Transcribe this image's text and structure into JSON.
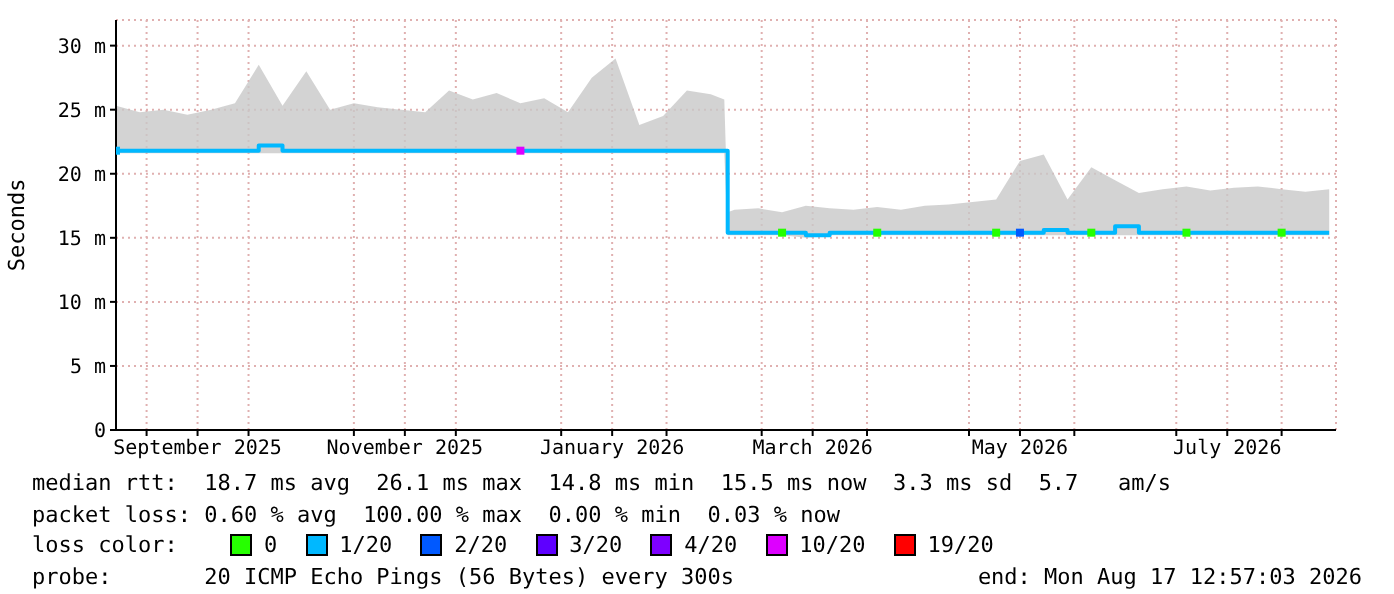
{
  "chart_data": {
    "type": "line",
    "ylabel": "Seconds",
    "x": [
      "2025-08-23",
      "2025-08-30",
      "2025-09-06",
      "2025-09-13",
      "2025-09-20",
      "2025-09-27",
      "2025-10-04",
      "2025-10-11",
      "2025-10-18",
      "2025-10-25",
      "2025-11-01",
      "2025-11-08",
      "2025-11-15",
      "2025-11-22",
      "2025-11-29",
      "2025-12-06",
      "2025-12-13",
      "2025-12-20",
      "2025-12-27",
      "2026-01-03",
      "2026-01-10",
      "2026-01-17",
      "2026-01-24",
      "2026-01-31",
      "2026-02-07",
      "2026-02-14",
      "2026-02-18",
      "2026-02-19",
      "2026-02-21",
      "2026-02-28",
      "2026-03-07",
      "2026-03-14",
      "2026-03-21",
      "2026-03-28",
      "2026-04-04",
      "2026-04-11",
      "2026-04-18",
      "2026-04-25",
      "2026-05-02",
      "2026-05-09",
      "2026-05-16",
      "2026-05-23",
      "2026-05-30",
      "2026-06-06",
      "2026-06-13",
      "2026-06-20",
      "2026-06-27",
      "2026-07-04",
      "2026-07-11",
      "2026-07-18",
      "2026-07-25",
      "2026-08-01",
      "2026-08-08",
      "2026-08-15"
    ],
    "series": [
      {
        "color": "#00b8ff",
        "values": [
          21.8,
          21.8,
          21.8,
          21.8,
          21.8,
          21.8,
          22.2,
          21.8,
          21.8,
          21.8,
          21.8,
          21.8,
          21.8,
          21.8,
          21.8,
          21.8,
          21.8,
          21.8,
          21.8,
          21.8,
          21.8,
          21.8,
          21.8,
          21.8,
          21.8,
          21.8,
          21.8,
          15.4,
          15.4,
          15.4,
          15.4,
          15.2,
          15.4,
          15.4,
          15.4,
          15.4,
          15.4,
          15.4,
          15.4,
          15.4,
          15.4,
          15.6,
          15.4,
          15.4,
          15.9,
          15.4,
          15.4,
          15.4,
          15.4,
          15.4,
          15.4,
          15.4,
          15.4,
          15.4
        ],
        "lower": [
          21.6,
          21.6,
          21.6,
          21.6,
          21.6,
          21.6,
          21.6,
          21.6,
          21.6,
          21.6,
          21.6,
          21.6,
          21.6,
          21.6,
          21.6,
          21.6,
          21.6,
          21.6,
          21.6,
          21.6,
          21.6,
          21.6,
          21.6,
          21.6,
          21.6,
          21.6,
          21.6,
          15.2,
          15.2,
          15.2,
          15.2,
          15.0,
          15.2,
          15.2,
          15.2,
          15.2,
          15.2,
          15.2,
          15.2,
          15.2,
          15.2,
          15.2,
          15.2,
          15.2,
          15.2,
          15.2,
          15.2,
          15.2,
          15.2,
          15.2,
          15.2,
          15.2,
          15.2,
          15.2
        ],
        "upper": [
          25.3,
          24.8,
          25.0,
          24.6,
          25.0,
          25.5,
          28.5,
          25.3,
          28.0,
          25.0,
          25.5,
          25.2,
          25.0,
          24.8,
          26.5,
          25.8,
          26.3,
          25.5,
          25.9,
          24.8,
          27.5,
          29.0,
          23.8,
          24.5,
          26.5,
          26.2,
          25.8,
          17.0,
          17.2,
          17.3,
          17.0,
          17.5,
          17.3,
          17.2,
          17.4,
          17.2,
          17.5,
          17.6,
          17.8,
          18.0,
          21.0,
          21.5,
          18.0,
          20.5,
          19.5,
          18.5,
          18.8,
          19.0,
          18.7,
          18.9,
          19.0,
          18.8,
          18.6,
          18.8
        ]
      },
      {
        "type": "scatter",
        "name": "0",
        "color": "#26ff00",
        "values": [
          null,
          null,
          null,
          null,
          null,
          null,
          null,
          null,
          null,
          null,
          null,
          null,
          null,
          null,
          null,
          null,
          null,
          null,
          null,
          null,
          null,
          null,
          null,
          null,
          null,
          null,
          null,
          null,
          null,
          null,
          15.4,
          null,
          null,
          null,
          15.4,
          null,
          null,
          null,
          null,
          15.4,
          null,
          null,
          null,
          15.4,
          null,
          null,
          null,
          15.4,
          null,
          null,
          null,
          15.4,
          null,
          null
        ]
      },
      {
        "type": "scatter",
        "name": "1/20",
        "color": "#00b8ff",
        "values": [
          21.8,
          null,
          null,
          null,
          null,
          null,
          null,
          null,
          null,
          null,
          null,
          null,
          null,
          null,
          null,
          null,
          null,
          null,
          null,
          null,
          null,
          null,
          null,
          null,
          null,
          null,
          null,
          null,
          null,
          null,
          null,
          null,
          null,
          null,
          null,
          null,
          null,
          null,
          null,
          null,
          null,
          null,
          null,
          null,
          null,
          null,
          null,
          null,
          null,
          null,
          null,
          null,
          null,
          null
        ]
      },
      {
        "type": "scatter",
        "name": "2/20",
        "color": "#0059ff",
        "values": [
          null,
          null,
          null,
          null,
          null,
          null,
          null,
          null,
          null,
          null,
          null,
          null,
          null,
          null,
          null,
          null,
          null,
          null,
          null,
          null,
          null,
          null,
          null,
          null,
          null,
          null,
          null,
          null,
          null,
          null,
          null,
          null,
          null,
          null,
          null,
          null,
          null,
          null,
          null,
          null,
          15.4,
          null,
          null,
          null,
          null,
          null,
          null,
          null,
          null,
          null,
          null,
          null,
          null,
          null
        ]
      },
      {
        "type": "scatter",
        "name": "3/20",
        "color": "#5e00ff",
        "values": [
          null,
          null,
          null,
          null,
          null,
          null,
          null,
          null,
          null,
          null,
          null,
          null,
          null,
          null,
          null,
          null,
          null,
          null,
          null,
          null,
          null,
          null,
          null,
          null,
          null,
          null,
          null,
          null,
          null,
          null,
          null,
          null,
          null,
          null,
          null,
          null,
          null,
          null,
          null,
          null,
          null,
          null,
          null,
          null,
          null,
          null,
          null,
          null,
          null,
          null,
          null,
          null,
          null,
          null
        ]
      },
      {
        "type": "scatter",
        "name": "4/20",
        "color": "#7e00ff",
        "values": [
          null,
          null,
          null,
          null,
          null,
          null,
          null,
          null,
          null,
          null,
          null,
          null,
          null,
          null,
          null,
          null,
          null,
          null,
          null,
          null,
          null,
          null,
          null,
          null,
          null,
          null,
          null,
          null,
          null,
          null,
          null,
          null,
          null,
          null,
          null,
          null,
          null,
          null,
          null,
          null,
          null,
          null,
          null,
          null,
          null,
          null,
          null,
          null,
          null,
          null,
          null,
          null,
          null,
          null
        ]
      },
      {
        "type": "scatter",
        "name": "10/20",
        "color": "#dd00ff",
        "values": [
          null,
          null,
          null,
          null,
          null,
          null,
          null,
          null,
          null,
          null,
          null,
          null,
          null,
          null,
          null,
          null,
          null,
          21.8,
          null,
          null,
          null,
          null,
          null,
          null,
          null,
          null,
          null,
          null,
          null,
          null,
          null,
          null,
          null,
          null,
          null,
          null,
          null,
          null,
          null,
          null,
          null,
          null,
          null,
          null,
          null,
          null,
          null,
          null,
          null,
          null,
          null,
          null,
          null,
          null
        ]
      },
      {
        "type": "scatter",
        "name": "19/20",
        "color": "#ff0000",
        "values": [
          null,
          null,
          null,
          null,
          null,
          null,
          null,
          null,
          null,
          null,
          null,
          null,
          null,
          null,
          null,
          null,
          null,
          null,
          null,
          null,
          null,
          null,
          null,
          null,
          null,
          null,
          null,
          null,
          null,
          null,
          null,
          null,
          null,
          null,
          null,
          null,
          null,
          null,
          null,
          null,
          null,
          null,
          null,
          null,
          null,
          null,
          null,
          null,
          null,
          null,
          null,
          null,
          null,
          null
        ]
      }
    ],
    "xlim": [
      "2025-08-23",
      "2026-08-17"
    ],
    "xticks": [
      {
        "value": "2025-09-01",
        "label": null
      },
      {
        "value": "2025-09-16",
        "label": "September 2025"
      },
      {
        "value": "2025-10-01",
        "label": null
      },
      {
        "value": "2025-11-01",
        "label": null
      },
      {
        "value": "2025-11-16",
        "label": "November 2025"
      },
      {
        "value": "2025-12-01",
        "label": null
      },
      {
        "value": "2026-01-01",
        "label": null
      },
      {
        "value": "2026-01-16",
        "label": "January 2026"
      },
      {
        "value": "2026-02-01",
        "label": null
      },
      {
        "value": "2026-03-01",
        "label": null
      },
      {
        "value": "2026-03-16",
        "label": "March 2026"
      },
      {
        "value": "2026-04-01",
        "label": null
      },
      {
        "value": "2026-05-01",
        "label": null
      },
      {
        "value": "2026-05-16",
        "label": "May 2026"
      },
      {
        "value": "2026-06-01",
        "label": null
      },
      {
        "value": "2026-07-01",
        "label": null
      },
      {
        "value": "2026-07-16",
        "label": "July 2026"
      },
      {
        "value": "2026-08-01",
        "label": null
      }
    ],
    "ylim": [
      0,
      32
    ],
    "yticks": [
      0,
      {
        "value": 5,
        "label": "5 m"
      },
      {
        "value": 10,
        "label": "10 m"
      },
      {
        "value": 15,
        "label": "15 m"
      },
      {
        "value": 20,
        "label": "20 m"
      },
      {
        "value": 25,
        "label": "25 m"
      },
      {
        "value": 30,
        "label": "30 m"
      }
    ],
    "grid": true,
    "legend": "bottom",
    "legend_title": "loss color:",
    "annotations": [
      "median rtt:  18.7 ms avg  26.1 ms max  14.8 ms min  15.5 ms now  3.3 ms sd  5.7   am/s",
      "packet loss: 0.60 % avg  100.00 % max  0.00 % min  0.03 % now",
      "probe:       20 ICMP Echo Pings (56 Bytes) every 300s",
      "end: Mon Aug 17 12:57:03 2026"
    ]
  }
}
